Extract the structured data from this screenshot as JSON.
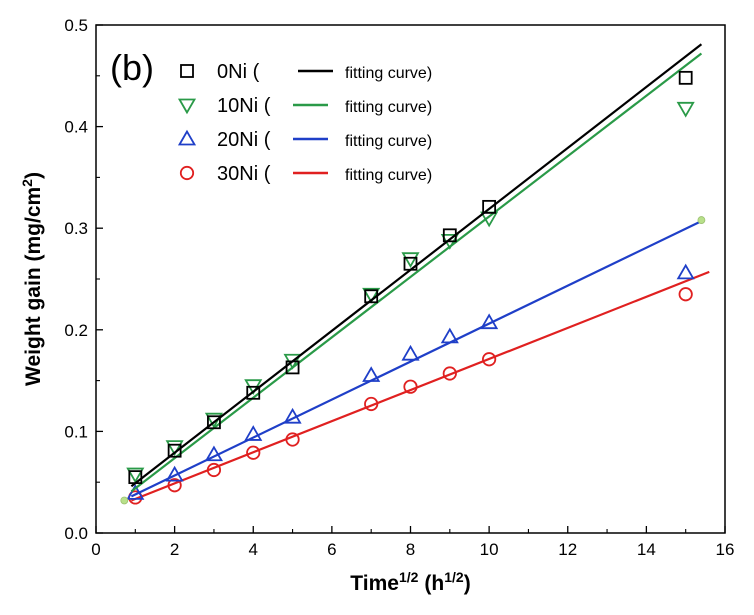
{
  "chart_data": {
    "type": "scatter",
    "panel_label": "(b)",
    "title": "",
    "xlabel": "Time",
    "xlabel_sup": "1/2",
    "xlabel_unit": "(h",
    "xlabel_unit_sup": "1/2",
    "xlabel_close": ")",
    "ylabel": "Weight gain (mg/cm",
    "ylabel_sup": "2",
    "ylabel_close": ")",
    "xlim": [
      0,
      16
    ],
    "ylim": [
      0,
      0.5
    ],
    "xticks": [
      "0",
      "2",
      "4",
      "6",
      "8",
      "10",
      "12",
      "14",
      "16"
    ],
    "yticks": [
      "0.0",
      "0.1",
      "0.2",
      "0.3",
      "0.4",
      "0.5"
    ],
    "grid": false,
    "legend_position": "top-left",
    "fit_label": "fitting curve",
    "series": [
      {
        "name": "0Ni",
        "marker": "square",
        "color": "#000000",
        "line_color": "#000000",
        "x": [
          1,
          2,
          3,
          4,
          5,
          7,
          8,
          9,
          10,
          15
        ],
        "y": [
          0.055,
          0.081,
          0.109,
          0.138,
          0.163,
          0.233,
          0.265,
          0.293,
          0.321,
          0.448
        ],
        "fit": {
          "x": [
            0.9,
            15.4
          ],
          "y": [
            0.046,
            0.481
          ]
        }
      },
      {
        "name": "10Ni",
        "marker": "triangle-down",
        "color": "#2a9a48",
        "line_color": "#2a9a48",
        "x": [
          1,
          2,
          3,
          4,
          5,
          7,
          8,
          9,
          10,
          15
        ],
        "y": [
          0.058,
          0.085,
          0.112,
          0.145,
          0.17,
          0.235,
          0.27,
          0.288,
          0.31,
          0.418
        ],
        "fit": {
          "x": [
            0.9,
            15.4
          ],
          "y": [
            0.041,
            0.472
          ]
        }
      },
      {
        "name": "20Ni",
        "marker": "triangle-up",
        "color": "#1f3fc8",
        "line_color": "#1f3fc8",
        "x": [
          1,
          2,
          3,
          4,
          5,
          7,
          8,
          9,
          10,
          15
        ],
        "y": [
          0.039,
          0.057,
          0.077,
          0.097,
          0.114,
          0.155,
          0.176,
          0.193,
          0.207,
          0.256
        ],
        "fit": {
          "x": [
            0.9,
            15.4
          ],
          "y": [
            0.036,
            0.307
          ]
        }
      },
      {
        "name": "30Ni",
        "marker": "circle",
        "color": "#e02020",
        "line_color": "#e02020",
        "x": [
          1,
          2,
          3,
          4,
          5,
          7,
          8,
          9,
          10,
          15
        ],
        "y": [
          0.035,
          0.047,
          0.062,
          0.079,
          0.092,
          0.127,
          0.144,
          0.157,
          0.171,
          0.235
        ],
        "fit": {
          "x": [
            0.9,
            15.6
          ],
          "y": [
            0.032,
            0.257
          ]
        }
      }
    ],
    "extra_points": [
      {
        "x": 0.72,
        "y": 0.032,
        "color": "#b8e08a"
      },
      {
        "x": 15.4,
        "y": 0.308,
        "color": "#b8e08a"
      }
    ]
  }
}
